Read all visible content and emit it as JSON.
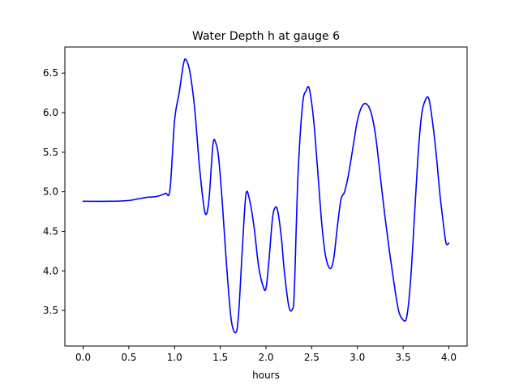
{
  "chart_data": {
    "type": "line",
    "title": "Water Depth h at gauge 6",
    "xlabel": "hours",
    "ylabel": "",
    "xlim": [
      -0.2,
      4.2
    ],
    "ylim": [
      3.05,
      6.83
    ],
    "xticks": [
      0.0,
      0.5,
      1.0,
      1.5,
      2.0,
      2.5,
      3.0,
      3.5,
      4.0
    ],
    "xtick_labels": [
      "0.0",
      "0.5",
      "1.0",
      "1.5",
      "2.0",
      "2.5",
      "3.0",
      "3.5",
      "4.0"
    ],
    "yticks": [
      3.5,
      4.0,
      4.5,
      5.0,
      5.5,
      6.0,
      6.5
    ],
    "ytick_labels": [
      "3.5",
      "4.0",
      "4.5",
      "5.0",
      "5.5",
      "6.0",
      "6.5"
    ],
    "grid": false,
    "series": [
      {
        "color": "#0000ff",
        "x": [
          0.0,
          0.3,
          0.5,
          0.6,
          0.7,
          0.8,
          0.9,
          0.95,
          1.0,
          1.05,
          1.1,
          1.13,
          1.17,
          1.22,
          1.27,
          1.32,
          1.35,
          1.38,
          1.42,
          1.45,
          1.48,
          1.52,
          1.57,
          1.62,
          1.67,
          1.7,
          1.74,
          1.78,
          1.82,
          1.87,
          1.92,
          1.97,
          2.0,
          2.03,
          2.07,
          2.1,
          2.13,
          2.17,
          2.2,
          2.25,
          2.29,
          2.31,
          2.35,
          2.4,
          2.44,
          2.47,
          2.5,
          2.53,
          2.57,
          2.61,
          2.65,
          2.7,
          2.74,
          2.78,
          2.82,
          2.86,
          2.9,
          2.95,
          3.0,
          3.05,
          3.1,
          3.15,
          3.2,
          3.25,
          3.3,
          3.35,
          3.4,
          3.45,
          3.5,
          3.54,
          3.58,
          3.62,
          3.66,
          3.7,
          3.74,
          3.78,
          3.82,
          3.86,
          3.9,
          3.94,
          3.97,
          4.0
        ],
        "y": [
          4.88,
          4.88,
          4.89,
          4.91,
          4.93,
          4.94,
          4.98,
          5.03,
          5.9,
          6.25,
          6.63,
          6.66,
          6.5,
          6.05,
          5.35,
          4.82,
          4.72,
          4.95,
          5.6,
          5.62,
          5.45,
          4.9,
          4.05,
          3.38,
          3.22,
          3.45,
          4.25,
          4.96,
          4.9,
          4.55,
          4.05,
          3.8,
          3.78,
          4.1,
          4.65,
          4.8,
          4.75,
          4.4,
          4.0,
          3.55,
          3.52,
          3.75,
          5.2,
          6.1,
          6.28,
          6.32,
          6.12,
          5.8,
          5.2,
          4.6,
          4.2,
          4.03,
          4.15,
          4.55,
          4.9,
          5.0,
          5.2,
          5.55,
          5.9,
          6.08,
          6.11,
          6.0,
          5.7,
          5.2,
          4.7,
          4.25,
          3.85,
          3.5,
          3.38,
          3.42,
          3.85,
          4.6,
          5.4,
          5.95,
          6.15,
          6.18,
          5.9,
          5.5,
          5.0,
          4.6,
          4.35,
          4.35
        ]
      }
    ]
  }
}
